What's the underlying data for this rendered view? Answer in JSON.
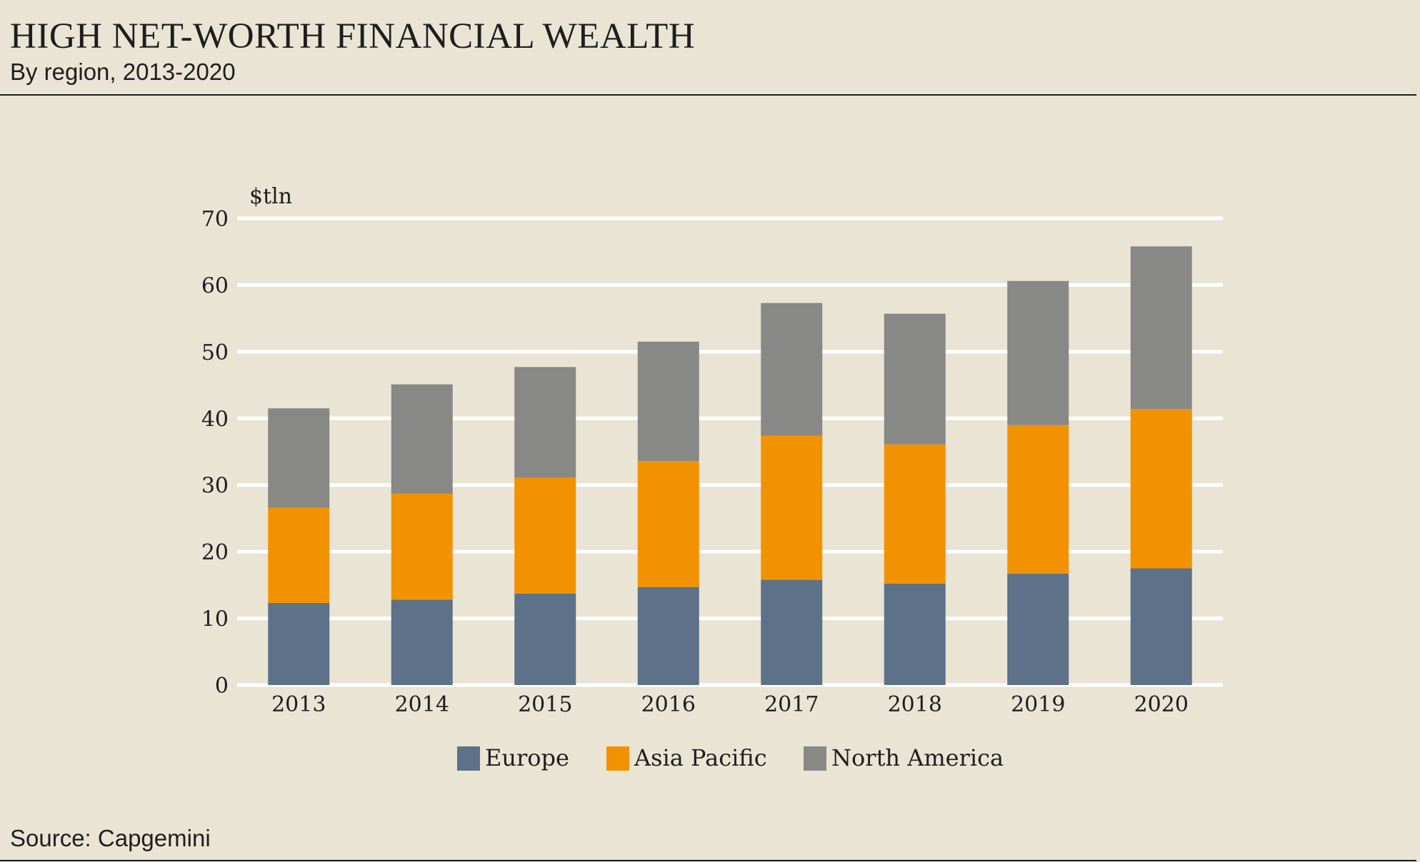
{
  "header": {
    "title": "HIGH NET-WORTH FINANCIAL WEALTH",
    "subtitle": "By region, 2013-2020"
  },
  "footer": {
    "source": "Source: Capgemini"
  },
  "chart_data": {
    "type": "bar",
    "stacked": true,
    "title": "HIGH NET-WORTH FINANCIAL WEALTH",
    "subtitle": "By region, 2013-2020",
    "unit_label": "$tln",
    "xlabel": "",
    "ylabel": "$tln",
    "ylim": [
      0,
      70
    ],
    "yticks": [
      0,
      10,
      20,
      30,
      40,
      50,
      60,
      70
    ],
    "grid": true,
    "legend_position": "bottom-center",
    "categories": [
      "2013",
      "2014",
      "2015",
      "2016",
      "2017",
      "2018",
      "2019",
      "2020"
    ],
    "series": [
      {
        "name": "Europe",
        "color": "#5d7189",
        "values": [
          12.3,
          12.8,
          13.7,
          14.7,
          15.8,
          15.2,
          16.7,
          17.5
        ]
      },
      {
        "name": "Asia Pacific",
        "color": "#f29200",
        "values": [
          14.3,
          15.9,
          17.4,
          18.9,
          21.6,
          20.9,
          22.3,
          23.9
        ]
      },
      {
        "name": "North America",
        "color": "#888887",
        "values": [
          14.9,
          16.4,
          16.6,
          17.9,
          19.9,
          19.6,
          21.6,
          24.4
        ]
      }
    ]
  }
}
